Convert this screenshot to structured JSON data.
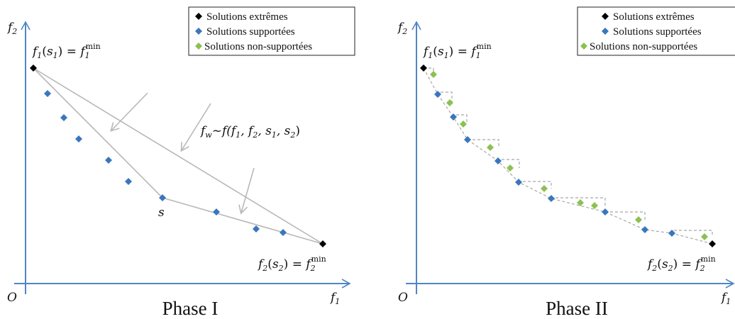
{
  "colors": {
    "axis": "#4f86c6",
    "extreme": "#000000",
    "supported": "#3a76be",
    "nonsupported": "#8cc152",
    "guide": "#b8b8b8",
    "dash": "#a8a8a8"
  },
  "legend": {
    "extreme": "Solutions extrêmes",
    "supported": "Solutions supportées",
    "nonsupported": "Solutions non-supportées"
  },
  "panels": [
    {
      "phase": "Phase I",
      "origin_label": "O",
      "axis_x": {
        "letter": "f",
        "index": "1"
      },
      "axis_y": {
        "letter": "f",
        "index": "2"
      },
      "annot_top": {
        "a": "f",
        "a_i": "1",
        "s": "s",
        "s_i": "1",
        "r": "f",
        "r_i": "1",
        "r_sup": "min"
      },
      "annot_bottom": {
        "a": "f",
        "a_i": "2",
        "s": "s",
        "s_i": "2",
        "r": "f",
        "r_i": "2",
        "r_sup": "min"
      },
      "annot_s": "s",
      "annot_fw": {
        "lhs": "f",
        "lhs_i": "w",
        "tilde": "~",
        "rhs": "f",
        "args": "(f",
        "a1": "1",
        "c1": ", f",
        "a2": "2",
        "c2": ", s",
        "a3": "1",
        "c3": ", s",
        "a4": "2",
        "close": ")"
      }
    },
    {
      "phase": "Phase II",
      "origin_label": "O",
      "axis_x": {
        "letter": "f",
        "index": "1"
      },
      "axis_y": {
        "letter": "f",
        "index": "2"
      },
      "annot_top": {
        "a": "f",
        "a_i": "1",
        "s": "s",
        "s_i": "1",
        "r": "f",
        "r_i": "1",
        "r_sup": "min"
      },
      "annot_bottom": {
        "a": "f",
        "a_i": "2",
        "s": "s",
        "s_i": "2",
        "r": "f",
        "r_i": "2",
        "r_sup": "min"
      }
    }
  ]
}
